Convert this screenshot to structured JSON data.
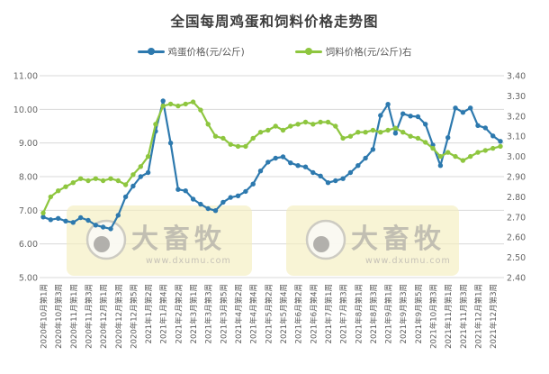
{
  "title": "全国每周鸡蛋和饲料价格走势图",
  "watermark": {
    "brand": "大畜牧",
    "url": "www.dxumu.com"
  },
  "colors": {
    "egg_series": "#2d79ae",
    "feed_series": "#8ec63f",
    "grid": "#d9d9d9",
    "axis_text": "#666666",
    "x_label_text": "#595959",
    "title_text": "#3c3c3c",
    "watermark_bg": "#f5efc0",
    "watermark_text": "#b5b2aa"
  },
  "chart_data": {
    "type": "line",
    "title": "全国每周鸡蛋和饲料价格走势图",
    "grid": true,
    "legend_position": "top",
    "label_every": 2,
    "x_labels": [
      "2020年10月第1周",
      "2020年10月第3周",
      "2020年11月第1周",
      "2020年11月第3周",
      "2020年12月第1周",
      "2020年12月第3周",
      "2020年12月第5周",
      "2021年1月第2周",
      "2021年1月第4周",
      "2021年2月第2周",
      "2021年3月第1周",
      "2021年3月第3周",
      "2021年3月第5周",
      "2021年4月第2周",
      "2021年4月第4周",
      "2021年5月第2周",
      "2021年5月第4周",
      "2021年6月第2周",
      "2021年6月第4周",
      "2021年7月第1周",
      "2021年7月第3周",
      "2021年8月第1周",
      "2021年8月第3周",
      "2021年9月第1周",
      "2021年9月第3周",
      "2021年9月第5周",
      "2021年10月第3周",
      "2021年11月第1周",
      "2021年11月第3周",
      "2021年12月第1周",
      "2021年12月第3周"
    ],
    "left_axis": {
      "min": 5,
      "max": 11,
      "ticks": [
        "11.00",
        "10.00",
        "9.00",
        "8.00",
        "7.00",
        "6.00",
        "5.00"
      ]
    },
    "right_axis": {
      "min": 2.4,
      "max": 3.4,
      "ticks": [
        "3.40",
        "3.30",
        "3.20",
        "3.10",
        "3.00",
        "2.90",
        "2.80",
        "2.70",
        "2.60",
        "2.50",
        "2.40"
      ]
    },
    "series": [
      {
        "name": "鸡蛋价格(元/公斤)",
        "axis": "left",
        "color": "#2d79ae",
        "values": [
          6.8,
          6.72,
          6.76,
          6.68,
          6.64,
          6.78,
          6.7,
          6.56,
          6.5,
          6.45,
          6.85,
          7.4,
          7.72,
          8.0,
          8.12,
          9.35,
          10.25,
          9.0,
          7.62,
          7.58,
          7.33,
          7.18,
          7.05,
          6.99,
          7.24,
          7.38,
          7.43,
          7.56,
          7.78,
          8.17,
          8.43,
          8.55,
          8.59,
          8.41,
          8.33,
          8.29,
          8.12,
          8.02,
          7.82,
          7.88,
          7.94,
          8.12,
          8.33,
          8.55,
          8.81,
          9.82,
          10.15,
          9.29,
          9.87,
          9.8,
          9.78,
          9.56,
          8.94,
          8.33,
          9.16,
          10.04,
          9.91,
          10.04,
          9.52,
          9.45,
          9.21,
          9.05
        ]
      },
      {
        "name": "饲料价格(元/公斤)右",
        "axis": "right",
        "color": "#8ec63f",
        "values": [
          2.72,
          2.8,
          2.83,
          2.85,
          2.87,
          2.89,
          2.88,
          2.89,
          2.88,
          2.89,
          2.88,
          2.86,
          2.91,
          2.95,
          3.0,
          3.16,
          3.25,
          3.26,
          3.25,
          3.26,
          3.27,
          3.23,
          3.16,
          3.1,
          3.09,
          3.06,
          3.05,
          3.05,
          3.09,
          3.12,
          3.13,
          3.15,
          3.13,
          3.15,
          3.16,
          3.17,
          3.16,
          3.17,
          3.17,
          3.15,
          3.09,
          3.1,
          3.12,
          3.12,
          3.13,
          3.12,
          3.13,
          3.14,
          3.12,
          3.1,
          3.09,
          3.07,
          3.04,
          3.0,
          3.02,
          3.0,
          2.98,
          3.0,
          3.02,
          3.03,
          3.04,
          3.05
        ]
      }
    ]
  }
}
